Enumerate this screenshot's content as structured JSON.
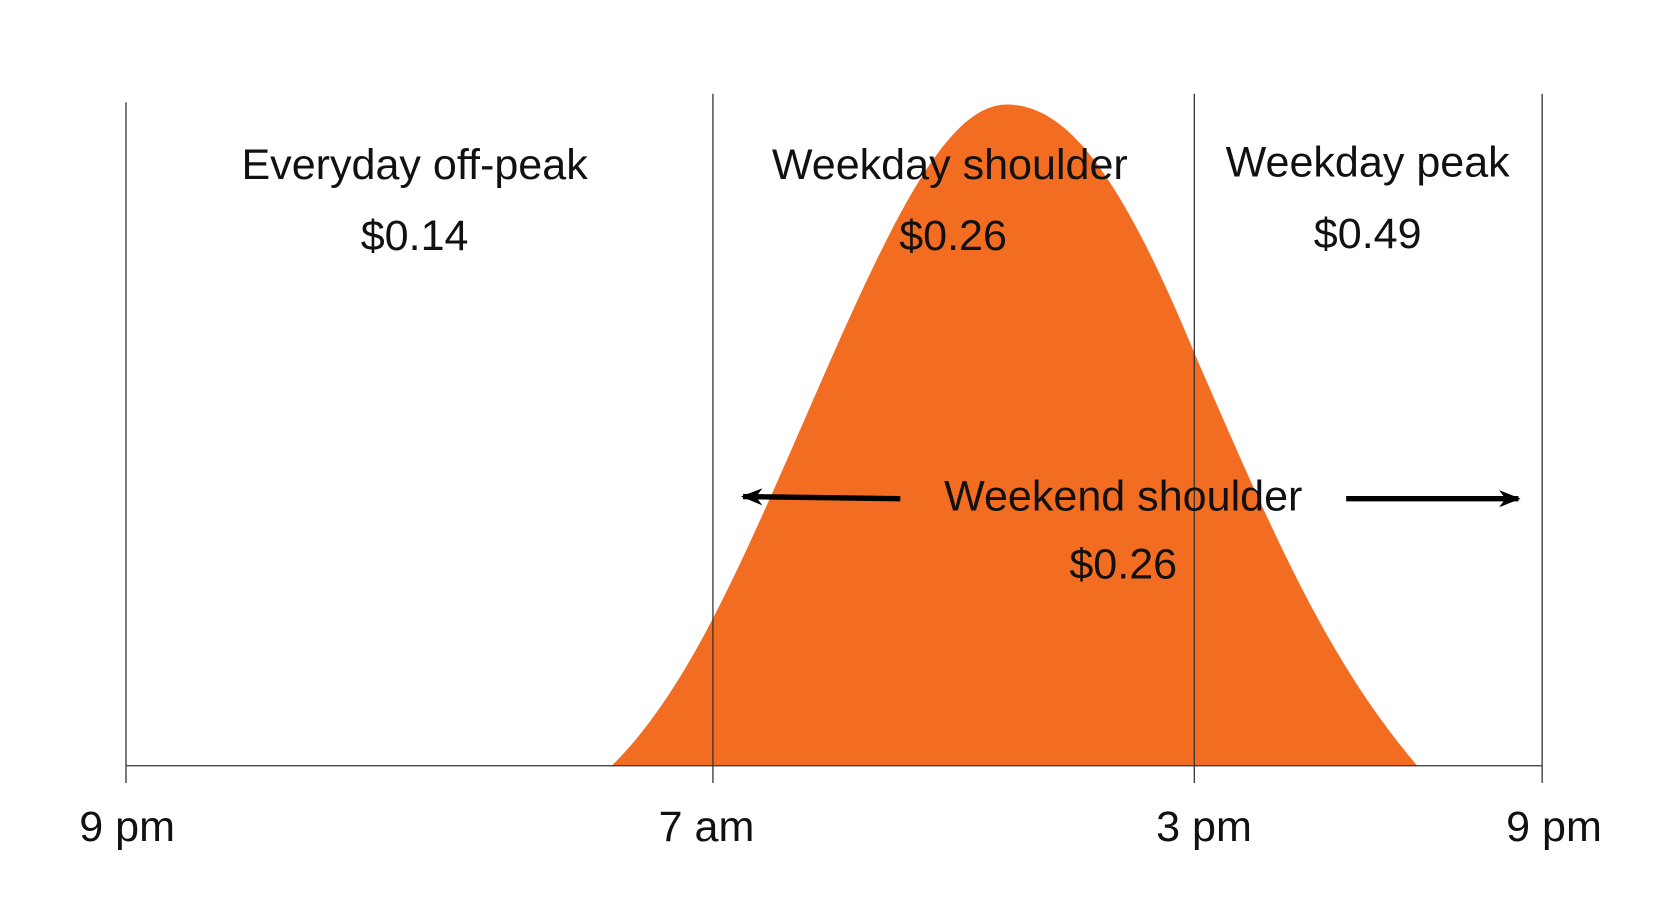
{
  "axis": {
    "ticks": [
      "9 pm",
      "7 am",
      "3 pm",
      "9 pm"
    ]
  },
  "zones": [
    {
      "name": "Everyday off-peak",
      "price": "$0.14"
    },
    {
      "name": "Weekday shoulder",
      "price": "$0.26"
    },
    {
      "name": "Weekday peak",
      "price": "$0.49"
    }
  ],
  "weekend": {
    "name": "Weekend shoulder",
    "price": "$0.26"
  }
}
